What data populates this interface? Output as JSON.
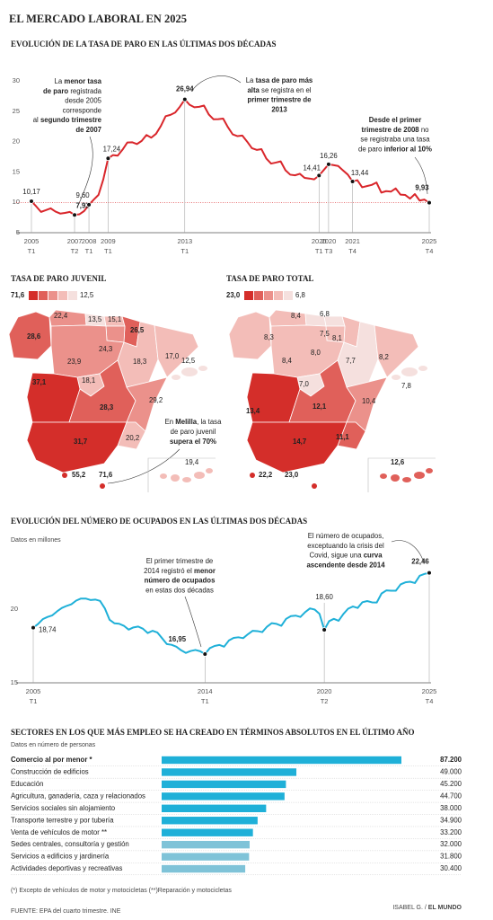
{
  "title": "EL MERCADO LABORAL EN 2025",
  "chart_data": [
    {
      "type": "line",
      "title": "EVOLUCIÓN DE LA TASA DE PARO EN LAS ÚLTIMAS DOS DÉCADAS",
      "color": "#d9262b",
      "ylim": [
        5,
        30
      ],
      "yticks": [
        5,
        10,
        15,
        20,
        25,
        30
      ],
      "grid": false,
      "categories": [
        [
          "2005",
          "T1"
        ],
        null,
        null,
        null,
        null,
        null,
        null,
        null,
        null,
        [
          "2007",
          "T2"
        ],
        null,
        null,
        [
          "2008",
          "T1"
        ],
        null,
        null,
        null,
        [
          "2009",
          "T1"
        ],
        null,
        null,
        null,
        null,
        null,
        null,
        null,
        null,
        null,
        null,
        null,
        null,
        null,
        null,
        null,
        [
          "2013",
          "T1"
        ],
        null,
        null,
        null,
        null,
        null,
        null,
        null,
        null,
        null,
        null,
        null,
        null,
        null,
        null,
        null,
        null,
        null,
        null,
        null,
        null,
        null,
        null,
        null,
        null,
        null,
        null,
        null,
        [
          "2020",
          "T1"
        ],
        null,
        [
          "2020",
          "T3"
        ],
        null,
        null,
        null,
        null,
        [
          "2021",
          "T4"
        ],
        null,
        null,
        null,
        null,
        null,
        null,
        null,
        null,
        null,
        null,
        null,
        null,
        null,
        null,
        null,
        [
          "2025",
          "T4"
        ]
      ],
      "values": [
        10.17,
        9.33,
        8.42,
        8.7,
        9.01,
        8.48,
        8.15,
        8.26,
        8.42,
        7.93,
        8.03,
        8.57,
        9.6,
        10.44,
        11.23,
        13.79,
        17.24,
        17.77,
        17.68,
        18.66,
        19.84,
        19.89,
        19.59,
        20.11,
        21.08,
        20.64,
        21.28,
        22.56,
        24.19,
        24.4,
        24.79,
        25.77,
        26.94,
        26.06,
        25.65,
        25.73,
        25.93,
        24.47,
        23.67,
        23.7,
        23.78,
        22.37,
        21.18,
        20.9,
        21.0,
        20.0,
        18.91,
        18.63,
        18.75,
        17.22,
        16.38,
        16.55,
        16.74,
        15.28,
        14.55,
        14.45,
        14.7,
        14.02,
        13.92,
        13.78,
        14.41,
        15.33,
        16.26,
        16.13,
        15.98,
        15.26,
        14.57,
        13.44,
        13.65,
        12.48,
        12.67,
        12.87,
        13.26,
        11.6,
        11.84,
        11.76,
        12.29,
        11.27,
        11.21,
        10.61,
        11.36,
        10.29,
        10.45,
        9.93
      ],
      "value_labels": [
        "10,17",
        null,
        null,
        null,
        null,
        null,
        null,
        null,
        null,
        "7,93",
        null,
        null,
        "9,60",
        null,
        null,
        null,
        "17,24",
        null,
        null,
        null,
        null,
        null,
        null,
        null,
        null,
        null,
        null,
        null,
        null,
        null,
        null,
        null,
        "26,94",
        null,
        null,
        null,
        null,
        null,
        null,
        null,
        null,
        null,
        null,
        null,
        null,
        null,
        null,
        null,
        null,
        null,
        null,
        null,
        null,
        null,
        null,
        null,
        null,
        null,
        null,
        null,
        "14,41",
        null,
        "16,26",
        null,
        null,
        null,
        null,
        "13,44",
        null,
        null,
        null,
        null,
        null,
        null,
        null,
        null,
        null,
        null,
        null,
        null,
        null,
        null,
        null,
        "9,93"
      ],
      "annotations": [
        [
          [
            "La ",
            {
              "text": "menor tasa",
              "bold": true
            }
          ],
          [
            {
              "text": "de paro",
              "bold": true
            },
            " registrada"
          ],
          [
            "desde 2005"
          ],
          [
            "corresponde"
          ],
          [
            "al ",
            {
              "text": "segundo trimestre",
              "bold": true
            }
          ],
          [
            {
              "text": "de 2007",
              "bold": true
            }
          ]
        ],
        [
          [
            "La ",
            {
              "text": "tasa de paro más",
              "bold": true
            }
          ],
          [
            {
              "text": "alta",
              "bold": true
            },
            " se registra en  el"
          ],
          [
            {
              "text": "primer trimestre de",
              "bold": true
            }
          ],
          [
            {
              "text": "2013",
              "bold": true
            }
          ]
        ],
        [
          [
            {
              "text": "Desde el primer",
              "bold": true
            }
          ],
          [
            {
              "text": "trimestre de 2008",
              "bold": true
            },
            " no"
          ],
          [
            "se registraba una tasa"
          ],
          [
            "de paro ",
            {
              "text": "inferior al 10%",
              "bold": true
            }
          ]
        ]
      ]
    },
    {
      "type": "line",
      "title": "EVOLUCIÓN DEL NÚMERO DE OCUPADOS EN LAS ÚLTIMAS DOS DÉCADAS",
      "subtitle": "Datos en millones",
      "color": "#1fb0d8",
      "ylim": [
        15,
        23
      ],
      "yticks": [
        15,
        20
      ],
      "grid": false,
      "categories": [
        [
          "2005",
          "T1"
        ],
        null,
        null,
        null,
        null,
        null,
        null,
        null,
        null,
        null,
        null,
        null,
        null,
        null,
        null,
        null,
        null,
        null,
        null,
        null,
        null,
        null,
        null,
        null,
        null,
        null,
        null,
        null,
        null,
        null,
        null,
        null,
        null,
        null,
        null,
        null,
        [
          "2014",
          "T1"
        ],
        null,
        null,
        null,
        null,
        null,
        null,
        null,
        null,
        null,
        null,
        null,
        null,
        null,
        null,
        null,
        null,
        null,
        null,
        null,
        null,
        null,
        null,
        null,
        null,
        [
          "2020",
          "T2"
        ],
        null,
        null,
        null,
        null,
        null,
        null,
        null,
        null,
        null,
        null,
        null,
        null,
        null,
        null,
        null,
        null,
        null,
        null,
        null,
        null,
        null,
        [
          "2025",
          "T4"
        ]
      ],
      "values": [
        18.74,
        18.99,
        19.32,
        19.47,
        19.58,
        19.85,
        20.08,
        20.22,
        20.33,
        20.58,
        20.72,
        20.72,
        20.62,
        20.65,
        20.56,
        20.06,
        19.28,
        19.04,
        19.01,
        18.87,
        18.61,
        18.76,
        18.82,
        18.67,
        18.38,
        18.53,
        18.42,
        18.03,
        17.63,
        17.58,
        17.45,
        17.21,
        17.03,
        17.16,
        17.23,
        17.14,
        16.95,
        17.35,
        17.5,
        17.57,
        17.45,
        17.87,
        18.05,
        18.09,
        18.03,
        18.3,
        18.53,
        18.51,
        18.44,
        18.81,
        19.05,
        19.0,
        18.87,
        19.34,
        19.53,
        19.56,
        19.47,
        19.8,
        20.05,
        19.97,
        19.68,
        18.6,
        19.18,
        19.34,
        19.21,
        19.67,
        20.03,
        20.18,
        20.08,
        20.47,
        20.55,
        20.46,
        20.45,
        21.06,
        21.27,
        21.25,
        21.25,
        21.68,
        21.82,
        21.86,
        21.77,
        22.27,
        22.39,
        22.46
      ],
      "value_labels": [
        "18,74",
        null,
        null,
        null,
        null,
        null,
        null,
        null,
        null,
        null,
        null,
        null,
        null,
        null,
        null,
        null,
        null,
        null,
        null,
        null,
        null,
        null,
        null,
        null,
        null,
        null,
        null,
        null,
        null,
        null,
        null,
        null,
        null,
        null,
        null,
        null,
        "16,95",
        null,
        null,
        null,
        null,
        null,
        null,
        null,
        null,
        null,
        null,
        null,
        null,
        null,
        null,
        null,
        null,
        null,
        null,
        null,
        null,
        null,
        null,
        null,
        null,
        "18,60",
        null,
        null,
        null,
        null,
        null,
        null,
        null,
        null,
        null,
        null,
        null,
        null,
        null,
        null,
        null,
        null,
        null,
        null,
        null,
        null,
        null,
        "22,46"
      ],
      "annotations": [
        [
          [
            "El primer trimestre de"
          ],
          [
            "2014 registró el ",
            {
              "text": "menor",
              "bold": true
            }
          ],
          [
            {
              "text": "número de ocupados",
              "bold": true
            }
          ],
          [
            "en estas dos décadas"
          ]
        ],
        [
          [
            "El número de ocupados,"
          ],
          [
            "exceptuando la crisis del"
          ],
          [
            "Covid, sigue una ",
            {
              "text": "curva",
              "bold": true
            }
          ],
          [
            {
              "text": "ascendente desde 2014",
              "bold": true
            }
          ]
        ]
      ]
    },
    {
      "type": "bar",
      "title": "SECTORES EN LOS QUE MÁS EMPLEO SE HA CREADO EN TÉRMINOS ABSOLUTOS EN EL ÚLTIMO AÑO",
      "subtitle": "Datos en número de personas",
      "categories": [
        "Comercio al por menor *",
        "Construcción de edificios",
        "Educación",
        "Agricultura, ganadería, caza y relacionados",
        "Servicios sociales sin alojamiento",
        "Transporte terrestre y por tubería",
        "Venta de vehículos de motor **",
        "Sedes centrales, consultoría y gestión",
        "Servicios a edificios y jardinería",
        "Actividades deportivas y recreativas"
      ],
      "values": [
        87200,
        49000,
        45200,
        44700,
        38000,
        34900,
        33200,
        32000,
        31800,
        30400
      ],
      "value_labels": [
        "87.200",
        "49.000",
        "45.200",
        "44.700",
        "38.000",
        "34.900",
        "33.200",
        "32.000",
        "31.800",
        "30.400"
      ],
      "colors": [
        "#1fb0d8",
        "#1fb0d8",
        "#1fb0d8",
        "#1fb0d8",
        "#1fb0d8",
        "#1fb0d8",
        "#1fb0d8",
        "#7fc3d8",
        "#7fc3d8",
        "#7fc3d8"
      ]
    }
  ],
  "maps": [
    {
      "title": "TASA DE PARO JUVENIL",
      "legend": [
        "71,6",
        "12,5"
      ],
      "values": [
        "28,6",
        "22,4",
        "13,5",
        "15,1",
        "26,5",
        "24,3",
        "23,9",
        "18,3",
        "17,0",
        "18,1",
        "37,1",
        "28,3",
        "29,2",
        "12,5",
        "20,2",
        "31,7",
        "19,4",
        "55,2",
        "71,6"
      ],
      "annotation": [
        [
          "En ",
          {
            "text": "Melilla",
            "bold": true
          },
          ", la tasa"
        ],
        [
          "de paro juvenil"
        ],
        [
          {
            "text": "supera el 70%",
            "bold": true
          }
        ]
      ]
    },
    {
      "title": "TASA DE PARO TOTAL",
      "legend": [
        "23,0",
        "6,8"
      ],
      "values": [
        "8,3",
        "8,4",
        "6,8",
        "7,5",
        "8,1",
        "8,0",
        "8,4",
        "7,7",
        "8,2",
        "7,0",
        "13,4",
        "12,1",
        "10,4",
        "7,8",
        "11,1",
        "14,7",
        "12,6",
        "22,2",
        "23,0"
      ]
    }
  ],
  "footer": {
    "note": "(*) Excepto de vehículos de motor y motocicletas (**)Reparación y motocicletas",
    "source": "FUENTE: EPA del cuarto trimestre. INE",
    "credit": [
      "ISABEL G. / ",
      "EL MUNDO"
    ]
  }
}
